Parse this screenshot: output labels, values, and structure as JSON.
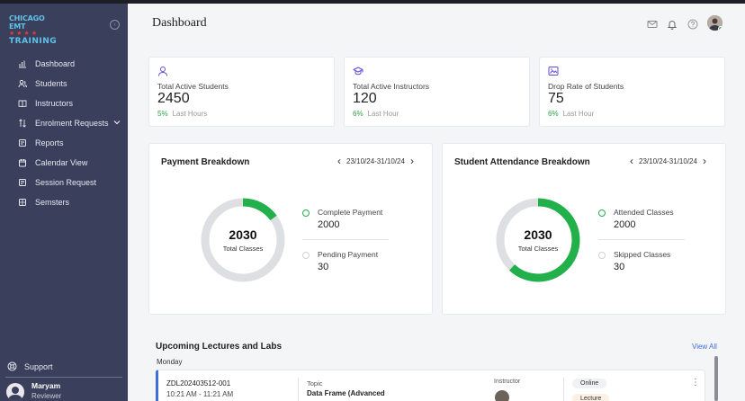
{
  "sidebar": {
    "logo": {
      "line1": "CHICAGO EMT",
      "stars": "★★★★",
      "line2": "TRAINING"
    },
    "collapse_icon": "chevron-left-icon",
    "items": [
      {
        "label": "Dashboard",
        "icon": "chart-icon"
      },
      {
        "label": "Students",
        "icon": "users-icon"
      },
      {
        "label": "Instructors",
        "icon": "book-icon"
      },
      {
        "label": "Enrolment Requests",
        "icon": "swap-icon",
        "has_dropdown": true
      },
      {
        "label": "Reports",
        "icon": "report-icon"
      },
      {
        "label": "Calendar View",
        "icon": "calendar-icon"
      },
      {
        "label": "Session Request",
        "icon": "session-icon"
      },
      {
        "label": "Semsters",
        "icon": "grid-icon"
      }
    ],
    "support": {
      "label": "Support",
      "icon": "lifebuoy-icon"
    },
    "user": {
      "name": "Maryam",
      "role": "Reviewer"
    }
  },
  "header": {
    "title": "Dashboard",
    "icons": [
      "mail-icon",
      "bell-icon",
      "help-icon",
      "profile-avatar"
    ]
  },
  "stats": [
    {
      "label": "Total Active Students",
      "value": "2450",
      "trend": "5%",
      "period": "Last Hours",
      "icon": "user-icon"
    },
    {
      "label": "Total Active Instructors",
      "value": "120",
      "trend": "6%",
      "period": "Last Hour",
      "icon": "graduation-cap-icon"
    },
    {
      "label": "Drop Rate of Students",
      "value": "75",
      "trend": "6%",
      "period": "Last Hour",
      "icon": "image-chart-icon"
    }
  ],
  "payment": {
    "title": "Payment Breakdown",
    "range": "23/10/24-31/10/24",
    "center_value": "2030",
    "center_label": "Total Classes",
    "items": [
      {
        "label": "Complete Payment",
        "value": "2000"
      },
      {
        "label": "Pending Payment",
        "value": "30"
      }
    ],
    "fraction": 0.15,
    "accent": "#22b04b"
  },
  "attendance": {
    "title": "Student Attendance Breakdown",
    "range": "23/10/24-31/10/24",
    "center_value": "2030",
    "center_label": "Total Classes",
    "items": [
      {
        "label": "Attended Classes",
        "value": "2000"
      },
      {
        "label": "Skipped Classes",
        "value": "30"
      }
    ],
    "fraction": 0.62,
    "accent": "#22b04b"
  },
  "upcoming": {
    "title": "Upcoming Lectures and Labs",
    "view_all": "View All",
    "day": "Monday",
    "lectures": [
      {
        "id": "ZDL202403512-001",
        "time": "10:21 AM - 11:21 AM",
        "topic_label": "Topic",
        "topic": "Data Frame (Advanced",
        "instructor_label": "Instructor",
        "mode": "Online",
        "type": "Lecture"
      }
    ]
  }
}
